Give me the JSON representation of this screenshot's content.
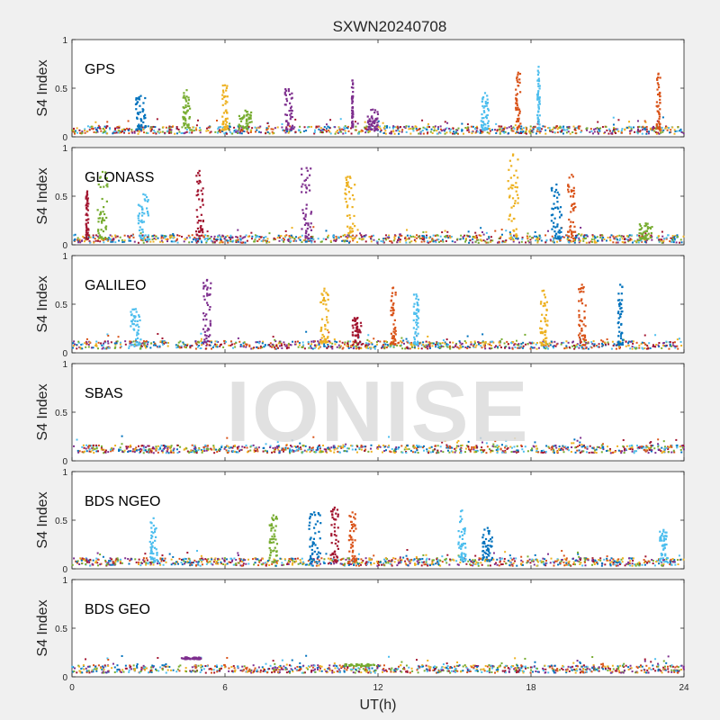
{
  "chart_data": {
    "type": "scatter",
    "title": "SXWN20240708",
    "xlabel": "UT(h)",
    "ylabel": "S4 Index",
    "xlim": [
      0,
      24
    ],
    "ylim": [
      0,
      1
    ],
    "xticks": [
      0,
      6,
      12,
      18,
      24
    ],
    "xtick_labels": [
      "0",
      "6",
      "12",
      "18",
      "24"
    ],
    "yticks": [
      0,
      0.5,
      1
    ],
    "ytick_labels": [
      "0",
      "0.5",
      "1"
    ],
    "watermark": "IONISE",
    "colors": [
      "#0072BD",
      "#D95319",
      "#EDB120",
      "#7E2F8E",
      "#77AC30",
      "#4DBEEE",
      "#A2142F"
    ],
    "panels": [
      {
        "label": "GPS",
        "base": 0.07,
        "spikes": [
          {
            "x": 2.7,
            "peak": 0.42,
            "width": 0.4,
            "color": "#0072BD"
          },
          {
            "x": 4.5,
            "peak": 0.48,
            "width": 0.3,
            "color": "#77AC30"
          },
          {
            "x": 6.0,
            "peak": 0.53,
            "width": 0.2,
            "color": "#EDB120"
          },
          {
            "x": 6.8,
            "peak": 0.27,
            "width": 0.5,
            "color": "#77AC30"
          },
          {
            "x": 8.5,
            "peak": 0.49,
            "width": 0.3,
            "color": "#7E2F8E"
          },
          {
            "x": 11.0,
            "peak": 0.58,
            "width": 0.05,
            "color": "#7E2F8E"
          },
          {
            "x": 11.8,
            "peak": 0.28,
            "width": 0.4,
            "color": "#7E2F8E"
          },
          {
            "x": 16.2,
            "peak": 0.45,
            "width": 0.3,
            "color": "#4DBEEE"
          },
          {
            "x": 17.5,
            "peak": 0.66,
            "width": 0.2,
            "color": "#D95319"
          },
          {
            "x": 18.3,
            "peak": 0.72,
            "width": 0.1,
            "color": "#4DBEEE"
          },
          {
            "x": 23.0,
            "peak": 0.65,
            "width": 0.15,
            "color": "#D95319"
          }
        ]
      },
      {
        "label": "GLONASS",
        "base": 0.06,
        "spikes": [
          {
            "x": 1.2,
            "peak": 0.75,
            "width": 0.4,
            "color": "#77AC30"
          },
          {
            "x": 0.6,
            "peak": 0.55,
            "width": 0.1,
            "color": "#A2142F"
          },
          {
            "x": 2.8,
            "peak": 0.52,
            "width": 0.4,
            "color": "#4DBEEE"
          },
          {
            "x": 5.0,
            "peak": 0.76,
            "width": 0.3,
            "color": "#A2142F"
          },
          {
            "x": 9.2,
            "peak": 0.79,
            "width": 0.4,
            "color": "#7E2F8E"
          },
          {
            "x": 10.9,
            "peak": 0.7,
            "width": 0.4,
            "color": "#EDB120"
          },
          {
            "x": 17.3,
            "peak": 0.93,
            "width": 0.4,
            "color": "#EDB120"
          },
          {
            "x": 19.0,
            "peak": 0.62,
            "width": 0.4,
            "color": "#0072BD"
          },
          {
            "x": 19.6,
            "peak": 0.72,
            "width": 0.3,
            "color": "#D95319"
          },
          {
            "x": 22.5,
            "peak": 0.22,
            "width": 0.5,
            "color": "#77AC30"
          }
        ]
      },
      {
        "label": "GALILEO",
        "base": 0.08,
        "spikes": [
          {
            "x": 2.5,
            "peak": 0.45,
            "width": 0.4,
            "color": "#4DBEEE"
          },
          {
            "x": 5.3,
            "peak": 0.75,
            "width": 0.3,
            "color": "#7E2F8E"
          },
          {
            "x": 9.9,
            "peak": 0.66,
            "width": 0.3,
            "color": "#EDB120"
          },
          {
            "x": 11.2,
            "peak": 0.36,
            "width": 0.4,
            "color": "#A2142F"
          },
          {
            "x": 12.6,
            "peak": 0.67,
            "width": 0.2,
            "color": "#D95319"
          },
          {
            "x": 13.5,
            "peak": 0.6,
            "width": 0.2,
            "color": "#4DBEEE"
          },
          {
            "x": 18.5,
            "peak": 0.64,
            "width": 0.3,
            "color": "#EDB120"
          },
          {
            "x": 20.0,
            "peak": 0.7,
            "width": 0.3,
            "color": "#D95319"
          },
          {
            "x": 21.5,
            "peak": 0.7,
            "width": 0.2,
            "color": "#0072BD"
          }
        ]
      },
      {
        "label": "SBAS",
        "base": 0.12,
        "spikes": []
      },
      {
        "label": "BDS NGEO",
        "base": 0.07,
        "spikes": [
          {
            "x": 3.2,
            "peak": 0.52,
            "width": 0.3,
            "color": "#4DBEEE"
          },
          {
            "x": 7.9,
            "peak": 0.55,
            "width": 0.3,
            "color": "#77AC30"
          },
          {
            "x": 9.5,
            "peak": 0.58,
            "width": 0.5,
            "color": "#0072BD"
          },
          {
            "x": 10.3,
            "peak": 0.63,
            "width": 0.3,
            "color": "#A2142F"
          },
          {
            "x": 11.0,
            "peak": 0.58,
            "width": 0.3,
            "color": "#D95319"
          },
          {
            "x": 15.3,
            "peak": 0.6,
            "width": 0.3,
            "color": "#4DBEEE"
          },
          {
            "x": 16.3,
            "peak": 0.42,
            "width": 0.4,
            "color": "#0072BD"
          },
          {
            "x": 23.2,
            "peak": 0.4,
            "width": 0.3,
            "color": "#4DBEEE"
          }
        ]
      },
      {
        "label": "BDS GEO",
        "base": 0.08,
        "spikes": [
          {
            "x": 4.7,
            "peak": 0.19,
            "width": 0.8,
            "color": "#7E2F8E",
            "flat": true
          },
          {
            "x": 11.3,
            "peak": 0.12,
            "width": 1.2,
            "color": "#77AC30",
            "flat": true
          }
        ]
      }
    ]
  }
}
